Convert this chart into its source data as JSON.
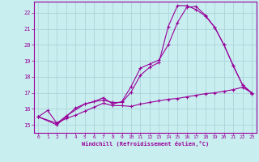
{
  "xlabel": "Windchill (Refroidissement éolien,°C)",
  "background_color": "#c8eef0",
  "grid_color": "#b0d8dc",
  "line_color": "#990099",
  "xlim": [
    -0.5,
    23.5
  ],
  "ylim": [
    14.5,
    22.7
  ],
  "yticks": [
    15,
    16,
    17,
    18,
    19,
    20,
    21,
    22
  ],
  "xticks": [
    0,
    1,
    2,
    3,
    4,
    5,
    6,
    7,
    8,
    9,
    10,
    11,
    12,
    13,
    14,
    15,
    16,
    17,
    18,
    19,
    20,
    21,
    22,
    23
  ],
  "curves": [
    {
      "x": [
        0,
        1,
        2,
        3,
        4,
        5,
        6,
        7,
        8,
        9,
        10,
        11,
        12,
        13,
        14,
        15,
        16,
        17,
        18,
        19,
        20,
        21,
        22,
        23
      ],
      "y": [
        15.5,
        15.9,
        15.1,
        15.4,
        15.6,
        15.85,
        16.1,
        16.35,
        16.2,
        16.2,
        16.15,
        16.3,
        16.4,
        16.5,
        16.6,
        16.65,
        16.75,
        16.85,
        16.95,
        17.0,
        17.1,
        17.2,
        17.35,
        17.0
      ]
    },
    {
      "x": [
        0,
        2,
        3,
        4,
        5,
        6,
        7,
        8,
        9,
        10,
        11,
        12,
        13,
        14,
        15,
        16,
        17,
        18,
        19,
        20,
        21,
        22,
        23
      ],
      "y": [
        15.5,
        15.0,
        15.5,
        16.05,
        16.3,
        16.45,
        16.7,
        16.3,
        16.45,
        17.4,
        18.55,
        18.8,
        19.05,
        20.0,
        21.4,
        22.35,
        22.4,
        21.85,
        21.1,
        20.0,
        18.7,
        17.5,
        17.0
      ]
    },
    {
      "x": [
        0,
        2,
        3,
        5,
        6,
        7,
        8,
        9,
        10,
        11,
        12,
        13,
        14,
        15,
        16,
        17,
        18,
        19,
        20,
        21,
        22,
        23
      ],
      "y": [
        15.5,
        15.1,
        15.55,
        16.3,
        16.45,
        16.55,
        16.4,
        16.4,
        17.05,
        18.1,
        18.6,
        18.9,
        21.15,
        22.45,
        22.45,
        22.2,
        21.8,
        21.1,
        20.0,
        18.7,
        17.5,
        16.95
      ]
    }
  ]
}
